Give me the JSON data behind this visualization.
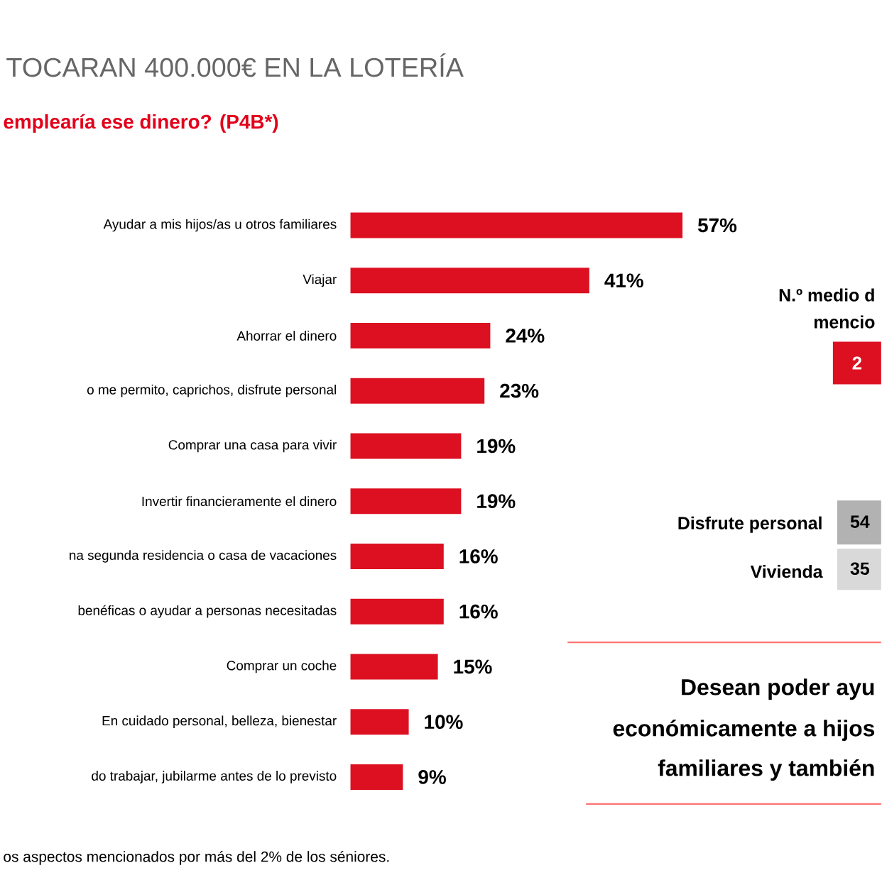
{
  "chart_data": {
    "type": "bar",
    "orientation": "horizontal",
    "title": "TOCARAN 400.000€ EN LA LOTERÍA",
    "subtitle": "emplearía ese dinero? (P4B*)",
    "categories": [
      "Ayudar a mis hijos/as u otros familiares",
      "Viajar",
      "Ahorrar el dinero",
      "o me permito, caprichos, disfrute personal",
      "Comprar una casa para vivir",
      "Invertir financieramente el dinero",
      "na segunda residencia o casa de vacaciones",
      "benéficas o ayudar a personas necesitadas",
      "Comprar un coche",
      "En cuidado personal, belleza, bienestar",
      "do trabajar, jubilarme antes de lo previsto"
    ],
    "values": [
      57,
      41,
      24,
      23,
      19,
      19,
      16,
      16,
      15,
      10,
      9
    ],
    "value_labels": [
      "57%",
      "41%",
      "24%",
      "23%",
      "19%",
      "19%",
      "16%",
      "16%",
      "15%",
      "10%",
      "9%"
    ],
    "color": "#dc1021",
    "annotations": [
      "N.º medio d",
      "mencio",
      "2",
      "Disfrute personal",
      "54",
      "Vivienda",
      "35",
      "Desean poder ayu",
      "económicamente a hijos",
      "familiares y también",
      "os aspectos mencionados por más del 2% de los séniores."
    ]
  }
}
